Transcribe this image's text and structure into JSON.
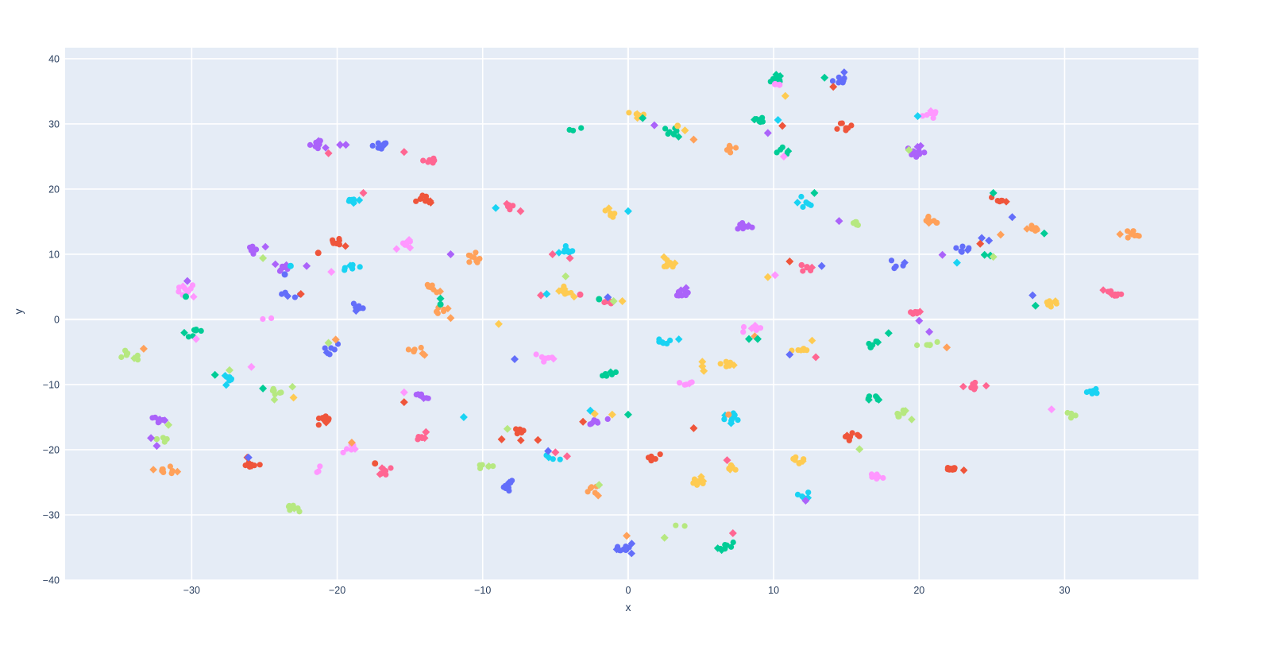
{
  "figure": {
    "page_bg": "#ffffff",
    "plot_bg": "#e5ecf6",
    "grid_color": "#ffffff",
    "tick_color": "#2a3f5f"
  },
  "chart_data": {
    "type": "scatter",
    "title": "",
    "xlabel": "x",
    "ylabel": "y",
    "xlim": [
      -38.7,
      39.2
    ],
    "ylim": [
      -40.0,
      41.7
    ],
    "xticks": [
      -30,
      -20,
      -10,
      0,
      10,
      20,
      30
    ],
    "yticks": [
      -40,
      -30,
      -20,
      -10,
      0,
      10,
      20,
      30,
      40
    ],
    "grid": true,
    "legend": false,
    "marker_shapes": [
      "circle",
      "diamond"
    ],
    "palette": [
      "#636efa",
      "#EF553B",
      "#00cc96",
      "#ab63fa",
      "#FFA15A",
      "#19d3f3",
      "#FF6692",
      "#B6E880",
      "#FF97FF",
      "#FECB52"
    ],
    "clusters_note": "each cluster = [x_center, y_center, palette_index, n_circle_points, n_diamond_points]",
    "clusters": [
      [
        -21.3,
        26.7,
        3,
        7,
        2
      ],
      [
        -17.0,
        26.8,
        0,
        6,
        2
      ],
      [
        -13.6,
        24.4,
        6,
        8,
        0
      ],
      [
        -19.0,
        18.4,
        5,
        6,
        2
      ],
      [
        -13.9,
        18.5,
        1,
        7,
        3
      ],
      [
        -25.8,
        10.6,
        3,
        6,
        1
      ],
      [
        -23.7,
        7.9,
        3,
        6,
        2
      ],
      [
        -20.2,
        11.7,
        1,
        7,
        1
      ],
      [
        -15.2,
        11.6,
        8,
        6,
        3
      ],
      [
        -19.2,
        8.2,
        5,
        5,
        1
      ],
      [
        -30.4,
        4.7,
        8,
        7,
        3
      ],
      [
        -23.2,
        4.0,
        0,
        4,
        1
      ],
      [
        -18.4,
        1.8,
        0,
        5,
        2
      ],
      [
        -24.6,
        -0.4,
        8,
        2,
        0
      ],
      [
        -30.1,
        -1.8,
        2,
        6,
        1
      ],
      [
        -34.2,
        -5.6,
        7,
        7,
        1
      ],
      [
        -20.5,
        -4.7,
        0,
        5,
        1
      ],
      [
        -14.5,
        -4.8,
        4,
        6,
        2
      ],
      [
        -27.4,
        -9.0,
        5,
        5,
        2
      ],
      [
        -24.1,
        -11.1,
        7,
        6,
        2
      ],
      [
        -14.3,
        -11.8,
        3,
        6,
        1
      ],
      [
        -32.2,
        -15.3,
        3,
        6,
        2
      ],
      [
        -32.1,
        -18.6,
        7,
        5,
        0
      ],
      [
        -31.7,
        -23.2,
        4,
        8,
        2
      ],
      [
        -21.1,
        -15.4,
        1,
        6,
        2
      ],
      [
        -19.3,
        -19.6,
        8,
        5,
        1
      ],
      [
        -25.9,
        -22.2,
        1,
        7,
        2
      ],
      [
        -21.4,
        -22.8,
        8,
        3,
        0
      ],
      [
        -16.8,
        -23.1,
        6,
        6,
        2
      ],
      [
        -14.4,
        -18.1,
        6,
        4,
        1
      ],
      [
        -22.9,
        -28.7,
        7,
        7,
        1
      ],
      [
        -10.6,
        9.5,
        4,
        7,
        2
      ],
      [
        -4.2,
        10.7,
        5,
        7,
        2
      ],
      [
        -4.5,
        4.3,
        9,
        8,
        3
      ],
      [
        -1.5,
        2.9,
        6,
        5,
        0
      ],
      [
        -13.4,
        4.9,
        4,
        6,
        1
      ],
      [
        -13.0,
        1.4,
        4,
        5,
        1
      ],
      [
        3.0,
        8.5,
        9,
        7,
        2
      ],
      [
        3.8,
        3.9,
        3,
        8,
        2
      ],
      [
        8.0,
        14.0,
        3,
        8,
        2
      ],
      [
        12.2,
        8.1,
        6,
        6,
        1
      ],
      [
        8.6,
        -1.6,
        8,
        6,
        2
      ],
      [
        2.7,
        -3.4,
        5,
        7,
        1
      ],
      [
        6.7,
        -6.6,
        9,
        5,
        1
      ],
      [
        3.9,
        -10.1,
        8,
        4,
        1
      ],
      [
        -5.7,
        -5.9,
        8,
        6,
        1
      ],
      [
        -1.5,
        -8.3,
        2,
        5,
        1
      ],
      [
        12.0,
        -4.5,
        9,
        6,
        1
      ],
      [
        -7.4,
        -17.3,
        1,
        6,
        2
      ],
      [
        -2.0,
        -15.9,
        3,
        6,
        1
      ],
      [
        -5.2,
        -21.0,
        5,
        3,
        1
      ],
      [
        -9.8,
        -22.3,
        7,
        5,
        1
      ],
      [
        -8.1,
        -25.6,
        0,
        7,
        1
      ],
      [
        -2.3,
        -26.2,
        4,
        6,
        1
      ],
      [
        1.8,
        -21.2,
        1,
        6,
        0
      ],
      [
        7.2,
        -22.7,
        9,
        6,
        1
      ],
      [
        4.7,
        -25.1,
        9,
        7,
        2
      ],
      [
        7.2,
        -15.2,
        5,
        8,
        2
      ],
      [
        11.7,
        -21.4,
        9,
        6,
        1
      ],
      [
        12.1,
        -27.4,
        5,
        5,
        1
      ],
      [
        -0.3,
        -35.0,
        0,
        10,
        3
      ],
      [
        6.8,
        -34.8,
        2,
        7,
        2
      ],
      [
        10.2,
        36.8,
        2,
        7,
        2
      ],
      [
        0.5,
        31.3,
        9,
        6,
        2
      ],
      [
        -3.8,
        28.9,
        2,
        3,
        0
      ],
      [
        2.9,
        28.9,
        2,
        7,
        1
      ],
      [
        7.1,
        26.2,
        4,
        6,
        0
      ],
      [
        9.1,
        30.6,
        2,
        6,
        1
      ],
      [
        10.5,
        26.1,
        2,
        4,
        1
      ],
      [
        -8.1,
        17.1,
        6,
        4,
        1
      ],
      [
        -1.3,
        16.2,
        9,
        5,
        1
      ],
      [
        12.2,
        18.0,
        5,
        6,
        1
      ],
      [
        14.6,
        36.7,
        0,
        7,
        1
      ],
      [
        20.8,
        31.4,
        8,
        6,
        1
      ],
      [
        14.8,
        29.8,
        1,
        7,
        0
      ],
      [
        19.8,
        25.7,
        3,
        8,
        2
      ],
      [
        25.5,
        18.4,
        1,
        5,
        1
      ],
      [
        20.8,
        15.0,
        4,
        7,
        1
      ],
      [
        15.6,
        14.9,
        7,
        5,
        0
      ],
      [
        27.8,
        14.0,
        4,
        6,
        1
      ],
      [
        23.1,
        10.7,
        0,
        6,
        1
      ],
      [
        34.6,
        13.0,
        4,
        7,
        2
      ],
      [
        18.2,
        8.3,
        0,
        4,
        1
      ],
      [
        33.4,
        3.9,
        6,
        7,
        2
      ],
      [
        29.0,
        2.7,
        9,
        6,
        1
      ],
      [
        19.6,
        1.0,
        6,
        5,
        1
      ],
      [
        17.1,
        -3.9,
        2,
        5,
        1
      ],
      [
        20.5,
        -3.6,
        7,
        6,
        0
      ],
      [
        23.6,
        -10.1,
        6,
        5,
        2
      ],
      [
        16.9,
        -12.0,
        2,
        5,
        2
      ],
      [
        32.0,
        -11.2,
        5,
        6,
        0
      ],
      [
        18.6,
        -14.6,
        7,
        6,
        2
      ],
      [
        15.3,
        -17.8,
        1,
        8,
        1
      ],
      [
        17.2,
        -24.3,
        8,
        6,
        1
      ],
      [
        22.4,
        -22.7,
        1,
        8,
        1
      ],
      [
        30.1,
        -14.8,
        7,
        4,
        0
      ],
      [
        3.4,
        -32.0,
        7,
        2,
        0
      ]
    ],
    "outliers_note": "each outlier = [x, y, palette_index, shape_index(0=circle,1=diamond)]",
    "outliers": [
      [
        -19.8,
        26.8,
        3,
        1
      ],
      [
        -19.4,
        26.8,
        3,
        1
      ],
      [
        -15.4,
        25.7,
        6,
        1
      ],
      [
        -20.6,
        25.5,
        6,
        1
      ],
      [
        -18.2,
        19.4,
        6,
        1
      ],
      [
        -25.1,
        9.4,
        7,
        1
      ],
      [
        -23.2,
        8.2,
        5,
        0
      ],
      [
        -23.6,
        6.9,
        0,
        0
      ],
      [
        -22.1,
        8.2,
        3,
        1
      ],
      [
        -21.3,
        10.2,
        1,
        0
      ],
      [
        -20.4,
        7.3,
        8,
        1
      ],
      [
        -30.3,
        5.9,
        3,
        1
      ],
      [
        -30.4,
        3.5,
        2,
        0
      ],
      [
        -22.5,
        3.9,
        1,
        1
      ],
      [
        -29.7,
        -3.0,
        8,
        1
      ],
      [
        -33.3,
        -4.5,
        4,
        1
      ],
      [
        -20.1,
        -3.1,
        4,
        1
      ],
      [
        -20.6,
        -3.6,
        7,
        1
      ],
      [
        -28.4,
        -8.5,
        2,
        1
      ],
      [
        -25.9,
        -7.3,
        8,
        1
      ],
      [
        -27.4,
        -7.8,
        7,
        1
      ],
      [
        -25.1,
        -10.6,
        2,
        1
      ],
      [
        -23.0,
        -12.0,
        9,
        1
      ],
      [
        -15.4,
        -11.2,
        8,
        1
      ],
      [
        -15.4,
        -12.7,
        1,
        1
      ],
      [
        -31.6,
        -16.2,
        7,
        1
      ],
      [
        -32.8,
        -18.2,
        3,
        1
      ],
      [
        -32.4,
        -19.4,
        3,
        1
      ],
      [
        -26.1,
        -21.2,
        0,
        1
      ],
      [
        -17.4,
        -22.1,
        1,
        0
      ],
      [
        -13.9,
        -17.3,
        6,
        1
      ],
      [
        -19.0,
        -18.9,
        4,
        1
      ],
      [
        -12.2,
        10.0,
        3,
        1
      ],
      [
        -5.2,
        10.0,
        6,
        1
      ],
      [
        -4.0,
        9.4,
        6,
        1
      ],
      [
        -4.3,
        6.6,
        7,
        1
      ],
      [
        -6.0,
        3.7,
        6,
        1
      ],
      [
        -5.6,
        3.9,
        5,
        1
      ],
      [
        -3.3,
        3.8,
        6,
        0
      ],
      [
        -1.4,
        3.4,
        0,
        1
      ],
      [
        -1.0,
        2.8,
        7,
        1
      ],
      [
        -0.4,
        2.8,
        9,
        1
      ],
      [
        -2.0,
        3.1,
        2,
        0
      ],
      [
        -12.9,
        3.2,
        2,
        1
      ],
      [
        -12.9,
        2.3,
        2,
        0
      ],
      [
        -12.2,
        0.2,
        4,
        1
      ],
      [
        -8.9,
        -0.7,
        9,
        1
      ],
      [
        9.6,
        6.5,
        9,
        1
      ],
      [
        8.7,
        -2.6,
        4,
        1
      ],
      [
        8.3,
        -3.0,
        2,
        1
      ],
      [
        8.9,
        -3.0,
        2,
        1
      ],
      [
        5.1,
        -6.5,
        9,
        1
      ],
      [
        5.1,
        -7.2,
        9,
        1
      ],
      [
        5.2,
        -7.9,
        9,
        1
      ],
      [
        -7.8,
        -6.1,
        0,
        1
      ],
      [
        11.1,
        -5.4,
        0,
        1
      ],
      [
        12.9,
        -5.8,
        6,
        1
      ],
      [
        -11.3,
        -15.0,
        5,
        1
      ],
      [
        -8.3,
        -16.8,
        7,
        1
      ],
      [
        -8.7,
        -18.4,
        1,
        1
      ],
      [
        -6.2,
        -18.5,
        1,
        1
      ],
      [
        -3.1,
        -15.7,
        1,
        1
      ],
      [
        -2.6,
        -14.0,
        5,
        1
      ],
      [
        -2.3,
        -14.5,
        9,
        1
      ],
      [
        -1.1,
        -14.6,
        9,
        1
      ],
      [
        0.0,
        -14.6,
        2,
        1
      ],
      [
        -5.5,
        -20.2,
        0,
        1
      ],
      [
        -5.0,
        -20.4,
        6,
        1
      ],
      [
        -4.2,
        -21.0,
        6,
        1
      ],
      [
        -2.0,
        -25.4,
        7,
        1
      ],
      [
        6.8,
        -21.6,
        6,
        1
      ],
      [
        6.9,
        -14.6,
        4,
        0
      ],
      [
        4.5,
        -16.7,
        1,
        1
      ],
      [
        12.2,
        -27.8,
        3,
        1
      ],
      [
        2.5,
        -33.5,
        7,
        1
      ],
      [
        -0.1,
        -33.2,
        4,
        1
      ],
      [
        7.2,
        -32.8,
        6,
        1
      ],
      [
        10.1,
        36.1,
        8,
        0
      ],
      [
        10.4,
        36.0,
        8,
        0
      ],
      [
        10.8,
        34.3,
        9,
        1
      ],
      [
        1.0,
        30.9,
        2,
        1
      ],
      [
        1.8,
        29.8,
        3,
        1
      ],
      [
        3.4,
        29.7,
        9,
        0
      ],
      [
        3.9,
        29.0,
        9,
        1
      ],
      [
        4.5,
        27.6,
        4,
        1
      ],
      [
        10.3,
        30.6,
        5,
        1
      ],
      [
        10.6,
        29.7,
        1,
        1
      ],
      [
        9.6,
        28.6,
        3,
        1
      ],
      [
        10.7,
        25.0,
        8,
        1
      ],
      [
        -9.1,
        17.1,
        5,
        1
      ],
      [
        -7.4,
        16.6,
        6,
        1
      ],
      [
        0.0,
        16.6,
        5,
        1
      ],
      [
        12.8,
        19.4,
        2,
        1
      ],
      [
        13.5,
        37.1,
        2,
        1
      ],
      [
        14.1,
        35.7,
        1,
        1
      ],
      [
        19.9,
        31.2,
        5,
        1
      ],
      [
        19.3,
        26.0,
        7,
        1
      ],
      [
        25.1,
        19.4,
        2,
        1
      ],
      [
        26.4,
        15.7,
        0,
        1
      ],
      [
        14.5,
        15.1,
        3,
        1
      ],
      [
        28.6,
        13.2,
        2,
        1
      ],
      [
        25.6,
        13.0,
        4,
        1
      ],
      [
        24.3,
        12.5,
        0,
        1
      ],
      [
        24.8,
        12.1,
        0,
        1
      ],
      [
        24.2,
        11.6,
        1,
        1
      ],
      [
        21.6,
        9.9,
        3,
        1
      ],
      [
        22.6,
        8.7,
        5,
        1
      ],
      [
        24.5,
        9.9,
        2,
        1
      ],
      [
        24.9,
        9.8,
        2,
        1
      ],
      [
        25.1,
        9.6,
        7,
        1
      ],
      [
        13.3,
        8.2,
        0,
        1
      ],
      [
        11.1,
        8.9,
        1,
        1
      ],
      [
        10.1,
        6.8,
        8,
        1
      ],
      [
        27.8,
        3.7,
        0,
        1
      ],
      [
        28.0,
        2.1,
        2,
        1
      ],
      [
        20.0,
        -0.2,
        3,
        1
      ],
      [
        17.9,
        -2.1,
        2,
        1
      ],
      [
        20.7,
        -1.9,
        3,
        1
      ],
      [
        21.9,
        -4.3,
        4,
        1
      ],
      [
        29.1,
        -13.8,
        8,
        1
      ],
      [
        15.9,
        -19.9,
        7,
        1
      ]
    ]
  }
}
